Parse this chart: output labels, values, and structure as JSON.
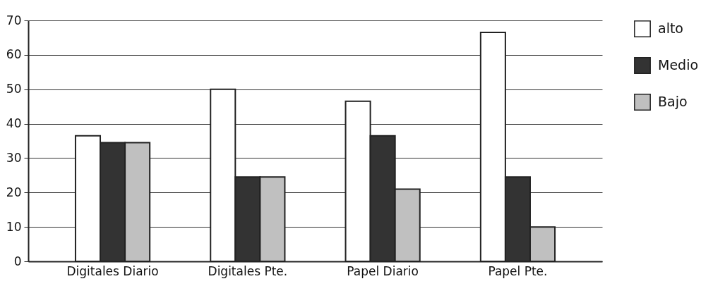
{
  "chart_data": {
    "type": "bar",
    "categories": [
      "Digitales Diario",
      "Digitales Pte.",
      "Papel Diario",
      "Papel Pte."
    ],
    "series": [
      {
        "name": "alto",
        "color": "#ffffff",
        "values": [
          36.5,
          50,
          46.5,
          66.5
        ]
      },
      {
        "name": "Medio",
        "color": "#333333",
        "values": [
          34.5,
          24.5,
          36.5,
          24.5
        ]
      },
      {
        "name": "Bajo",
        "color": "#c0c0c0",
        "values": [
          34.5,
          24.5,
          21,
          10
        ]
      }
    ],
    "ylim": [
      0,
      70
    ],
    "yticks": [
      0,
      10,
      20,
      30,
      40,
      50,
      60,
      70
    ],
    "grid": "y",
    "legend": "right"
  }
}
